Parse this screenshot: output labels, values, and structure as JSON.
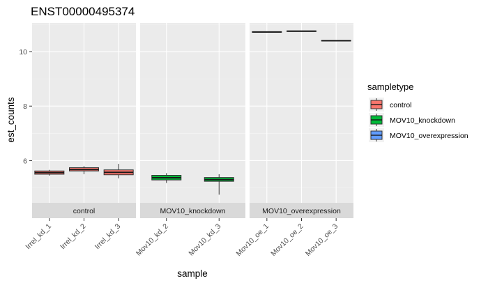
{
  "chart_data": {
    "type": "boxplot",
    "title": "ENST00000495374",
    "xlabel": "sample",
    "ylabel": "est_counts",
    "ylim": [
      4.45,
      11.05
    ],
    "y_ticks": [
      6,
      8,
      10
    ],
    "grid": true,
    "facet_by": "sampletype",
    "legend": {
      "title": "sampletype",
      "placement": "right",
      "entries": [
        {
          "label": "control",
          "color": "#F8766D"
        },
        {
          "label": "MOV10_knockdown",
          "color": "#00BA38"
        },
        {
          "label": "MOV10_overexpression",
          "color": "#619CFF"
        }
      ]
    },
    "facets": [
      {
        "label": "control",
        "color": "#F8766D",
        "categories": [
          "Irrel_kd_1",
          "Irrel_kd_2",
          "Irrel_kd_3"
        ],
        "boxes": [
          {
            "min": 5.45,
            "q1": 5.5,
            "median": 5.56,
            "q3": 5.62,
            "max": 5.66
          },
          {
            "min": 5.5,
            "q1": 5.62,
            "median": 5.67,
            "q3": 5.74,
            "max": 5.8
          },
          {
            "min": 5.35,
            "q1": 5.48,
            "median": 5.57,
            "q3": 5.66,
            "max": 5.88
          }
        ]
      },
      {
        "label": "MOV10_knockdown",
        "color": "#00BA38",
        "categories": [
          "Mov10_kd_2",
          "Mov10_kd_3"
        ],
        "boxes": [
          {
            "min": 5.18,
            "q1": 5.29,
            "median": 5.37,
            "q3": 5.46,
            "max": 5.54
          },
          {
            "min": 4.75,
            "q1": 5.24,
            "median": 5.3,
            "q3": 5.38,
            "max": 5.5
          }
        ]
      },
      {
        "label": "MOV10_overexpression",
        "color": "#619CFF",
        "categories": [
          "Mov10_oe_1",
          "Mov10_oe_2",
          "Mov10_oe_3"
        ],
        "boxes": [
          {
            "min": 10.7,
            "q1": 10.71,
            "median": 10.72,
            "q3": 10.73,
            "max": 10.74
          },
          {
            "min": 10.73,
            "q1": 10.74,
            "median": 10.75,
            "q3": 10.76,
            "max": 10.77
          },
          {
            "min": 10.38,
            "q1": 10.39,
            "median": 10.4,
            "q3": 10.41,
            "max": 10.42
          }
        ]
      }
    ]
  }
}
